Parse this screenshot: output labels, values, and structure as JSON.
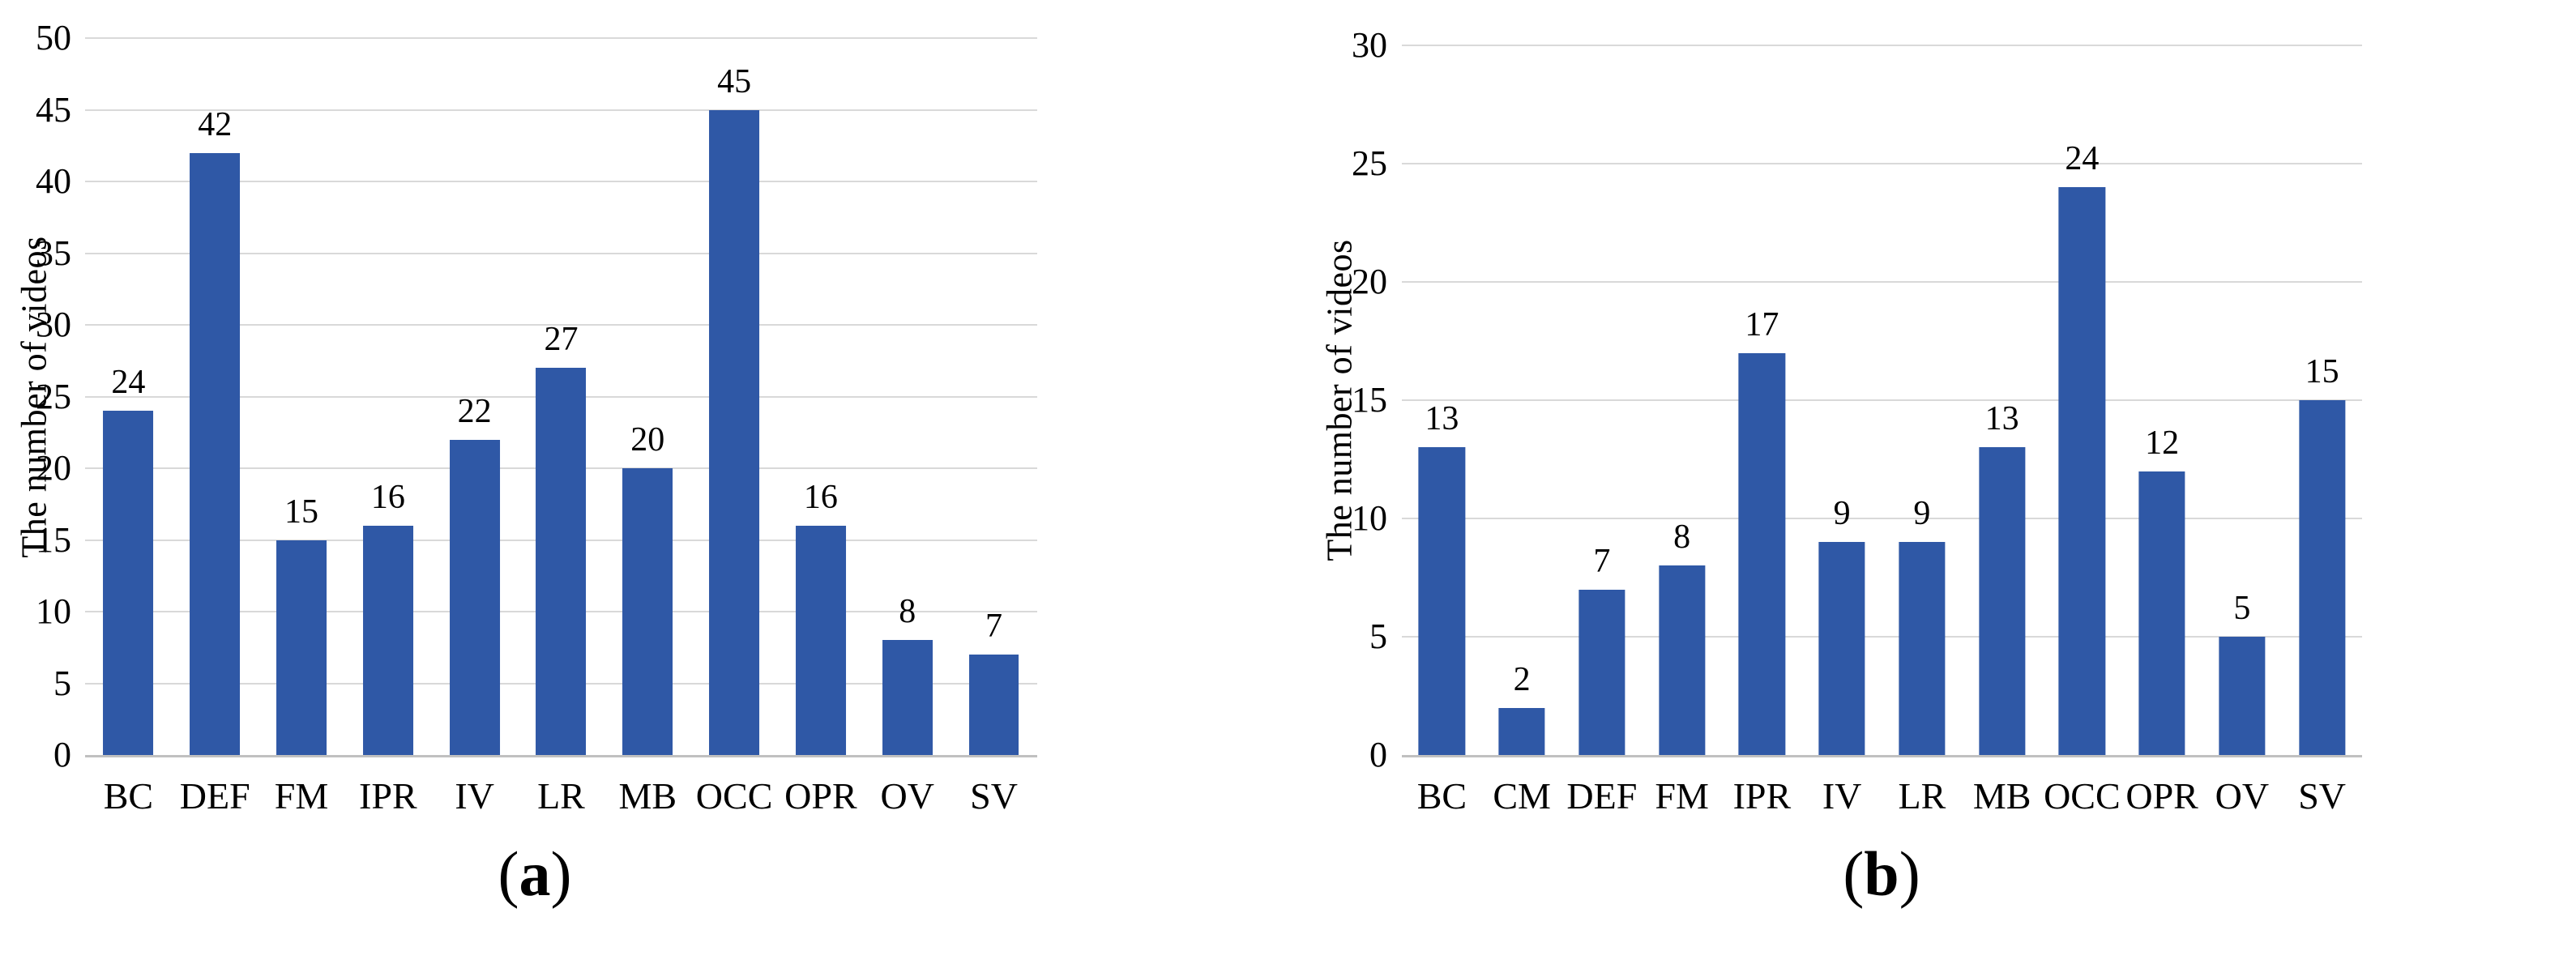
{
  "figure": {
    "captions": [
      {
        "open": "(",
        "letter": "a",
        "close": ")"
      },
      {
        "open": "(",
        "letter": "b",
        "close": ")"
      }
    ]
  },
  "colors": {
    "bar": "#2F58A6",
    "gridline": "#D9D9D9",
    "baseline": "#C0C0C0",
    "text": "#000000"
  },
  "chart_data": [
    {
      "type": "bar",
      "title": "",
      "xlabel": "",
      "ylabel": "The number of videos",
      "categories": [
        "BC",
        "DEF",
        "FM",
        "IPR",
        "IV",
        "LR",
        "MB",
        "OCC",
        "OPR",
        "OV",
        "SV"
      ],
      "values": [
        24,
        42,
        15,
        16,
        22,
        27,
        20,
        45,
        16,
        8,
        7
      ],
      "ylim": [
        0,
        50
      ],
      "ytick_step": 5,
      "grid": "horizontal",
      "legend": "none",
      "bar_labels": true
    },
    {
      "type": "bar",
      "title": "",
      "xlabel": "",
      "ylabel": "The number of videos",
      "categories": [
        "BC",
        "CM",
        "DEF",
        "FM",
        "IPR",
        "IV",
        "LR",
        "MB",
        "OCC",
        "OPR",
        "OV",
        "SV"
      ],
      "values": [
        13,
        2,
        7,
        8,
        17,
        9,
        9,
        13,
        24,
        12,
        5,
        15
      ],
      "ylim": [
        0,
        30
      ],
      "ytick_step": 5,
      "grid": "horizontal",
      "legend": "none",
      "bar_labels": true
    }
  ]
}
